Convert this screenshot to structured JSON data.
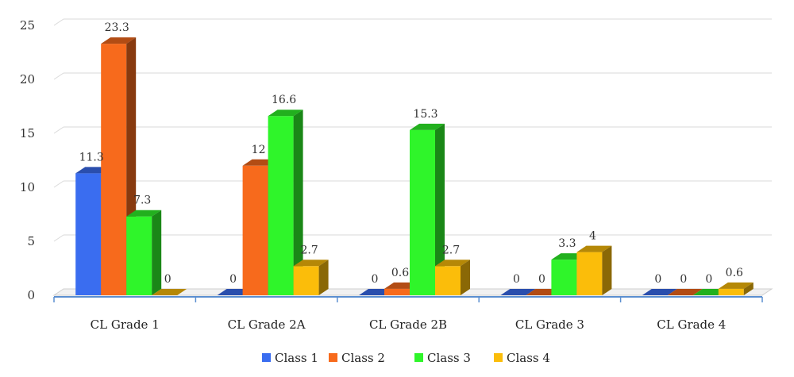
{
  "chart_data": {
    "type": "bar",
    "categories": [
      "CL Grade 1",
      "CL Grade 2A",
      "CL Grade 2B",
      "CL Grade 3",
      "CL Grade 4"
    ],
    "series": [
      {
        "name": "Class 1",
        "values": [
          11.3,
          0,
          0,
          0,
          0
        ],
        "color": "#3a6df0"
      },
      {
        "name": "Class 2",
        "values": [
          23.3,
          12,
          0.6,
          0,
          0
        ],
        "color": "#f76a1c"
      },
      {
        "name": "Class 3",
        "values": [
          7.3,
          16.6,
          15.3,
          3.3,
          0
        ],
        "color": "#2ff52a"
      },
      {
        "name": "Class 4",
        "values": [
          0,
          2.7,
          2.7,
          4,
          0.6
        ],
        "color": "#fbbd0a"
      }
    ],
    "yticks": [
      "0",
      "5",
      "10",
      "15",
      "20",
      "25"
    ],
    "ylim": [
      0,
      25
    ],
    "grid": true,
    "legend": "bottom",
    "style": "3d-column"
  }
}
